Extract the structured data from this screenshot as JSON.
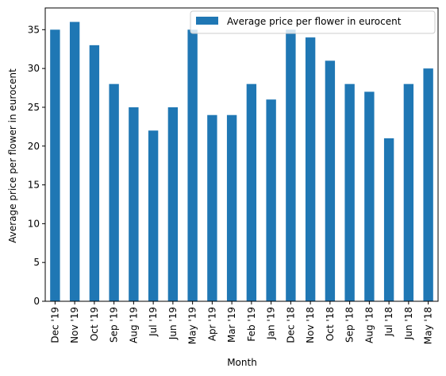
{
  "chart_data": {
    "type": "bar",
    "categories": [
      "Dec '19",
      "Nov '19",
      "Oct '19",
      "Sep '19",
      "Aug '19",
      "Jul '19",
      "Jun '19",
      "May '19",
      "Apr '19",
      "Mar '19",
      "Feb '19",
      "Jan '19",
      "Dec '18",
      "Nov '18",
      "Oct '18",
      "Sep '18",
      "Aug '18",
      "Jul '18",
      "Jun '18",
      "May '18"
    ],
    "series": [
      {
        "name": "Average price per flower in eurocent",
        "values": [
          35,
          36,
          33,
          28,
          25,
          22,
          25,
          35,
          24,
          24,
          28,
          26,
          35,
          34,
          31,
          28,
          27,
          21,
          28,
          30
        ],
        "color": "#1f77b4"
      }
    ],
    "xlabel": "Month",
    "ylabel": "Average price per flower in eurocent",
    "ylim": [
      0,
      37.8
    ],
    "yticks": [
      0,
      5,
      10,
      15,
      20,
      25,
      30,
      35
    ],
    "grid": false,
    "legend_position": "top-right"
  }
}
